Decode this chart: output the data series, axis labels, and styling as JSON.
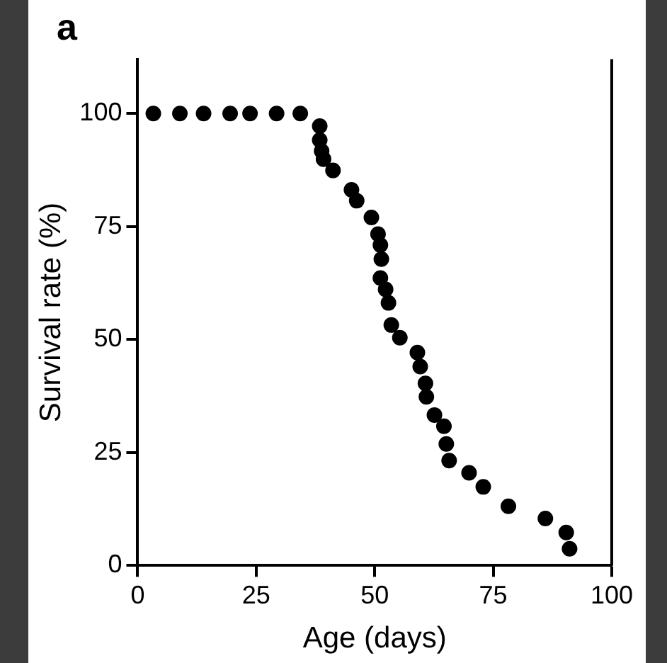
{
  "chart_data": {
    "type": "scatter",
    "xlabel": "Age (days)",
    "ylabel": "Survival rate (%)",
    "annotations": [
      "a"
    ],
    "x": [
      3.3,
      8.9,
      13.9,
      19.5,
      23.7,
      29.3,
      34.3,
      38.4,
      38.4,
      38.8,
      39.2,
      41.2,
      45.1,
      46.2,
      49.3,
      50.7,
      51.2,
      51.4,
      51.2,
      52.3,
      52.9,
      53.5,
      55.3,
      59.0,
      59.6,
      60.7,
      60.9,
      62.6,
      64.6,
      65.1,
      65.7,
      69.9,
      72.9,
      78.2,
      86.0,
      90.4,
      91.1
    ],
    "series": [
      {
        "color": "#000000",
        "values": [
          100,
          100,
          100,
          100,
          100,
          100,
          100,
          97.2,
          94.1,
          91.7,
          89.9,
          87.4,
          83.1,
          80.7,
          77.0,
          73.3,
          70.9,
          67.8,
          63.6,
          61.1,
          58.1,
          53.2,
          50.4,
          47.1,
          44.0,
          40.3,
          37.3,
          33.3,
          30.8,
          26.9,
          23.2,
          20.5,
          17.4,
          13.1,
          10.4,
          7.3,
          3.7
        ]
      }
    ],
    "xlim": [
      0,
      100
    ],
    "xticks": [
      0,
      25,
      50,
      75,
      100
    ],
    "ylim": [
      0,
      112
    ],
    "yticks": [
      0,
      25,
      50,
      75,
      100
    ],
    "grid": false,
    "legend": false,
    "marker": "circle"
  }
}
